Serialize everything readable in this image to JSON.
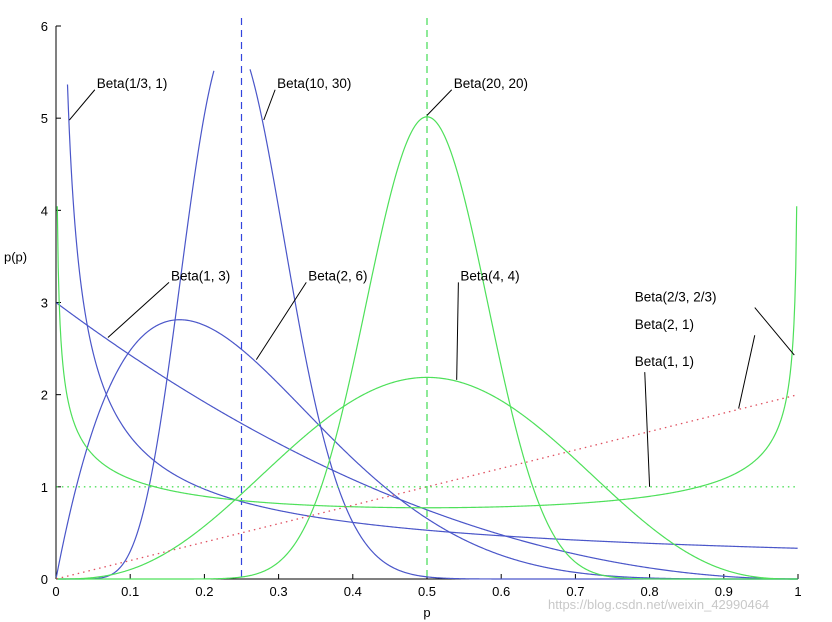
{
  "chart_data": {
    "type": "line",
    "xlabel": "p",
    "ylabel": "p(p)",
    "xlim": [
      0,
      1
    ],
    "ylim": [
      0,
      6
    ],
    "xticks": [
      "0",
      "0.1",
      "0.2",
      "0.3",
      "0.4",
      "0.5",
      "0.6",
      "0.7",
      "0.8",
      "0.9",
      "1"
    ],
    "yticks": [
      "0",
      "1",
      "2",
      "3",
      "4",
      "5",
      "6"
    ],
    "grid": false,
    "series": [
      {
        "name": "Beta(1/3, 1)",
        "a": 0.3333333,
        "b": 1,
        "color": "#4a56c9",
        "style": "solid"
      },
      {
        "name": "Beta(1, 3)",
        "a": 1,
        "b": 3,
        "color": "#4a56c9",
        "style": "solid"
      },
      {
        "name": "Beta(2, 6)",
        "a": 2,
        "b": 6,
        "color": "#4a56c9",
        "style": "solid"
      },
      {
        "name": "Beta(10, 30)",
        "a": 10,
        "b": 30,
        "color": "#4a56c9",
        "style": "solid"
      },
      {
        "name": "Beta(20, 20)",
        "a": 20,
        "b": 20,
        "color": "#4ee05a",
        "style": "solid"
      },
      {
        "name": "Beta(4, 4)",
        "a": 4,
        "b": 4,
        "color": "#4ee05a",
        "style": "solid"
      },
      {
        "name": "Beta(2/3, 2/3)",
        "a": 0.6666667,
        "b": 0.6666667,
        "color": "#4ee05a",
        "style": "solid"
      },
      {
        "name": "Beta(2, 1)",
        "a": 2,
        "b": 1,
        "color": "#e05060",
        "style": "dotted"
      },
      {
        "name": "Beta(1, 1)",
        "a": 1,
        "b": 1,
        "color": "#4ee05a",
        "style": "dotted"
      }
    ],
    "vlines": [
      {
        "x": 0.25,
        "color": "#3344dd"
      },
      {
        "x": 0.5,
        "color": "#44dd55"
      }
    ],
    "annotations": [
      {
        "text": "Beta(1/3, 1)",
        "x": 0.055,
        "y": 5.33,
        "point_x": 0.018,
        "point_y": 4.98
      },
      {
        "text": "Beta(10, 30)",
        "x": 0.298,
        "y": 5.33,
        "point_x": 0.28,
        "point_y": 4.98
      },
      {
        "text": "Beta(20, 20)",
        "x": 0.536,
        "y": 5.33,
        "point_x": 0.5,
        "point_y": 5.03
      },
      {
        "text": "Beta(1, 3)",
        "x": 0.155,
        "y": 3.24,
        "point_x": 0.07,
        "point_y": 2.62
      },
      {
        "text": "Beta(2, 6)",
        "x": 0.34,
        "y": 3.24,
        "point_x": 0.27,
        "point_y": 2.38
      },
      {
        "text": "Beta(4, 4)",
        "x": 0.545,
        "y": 3.24,
        "point_x": 0.54,
        "point_y": 2.16
      },
      {
        "text": "Beta(2/3, 2/3)",
        "x": 0.78,
        "y": 3.01,
        "point_x": 0.995,
        "point_y": 2.43
      },
      {
        "text": "Beta(2, 1)",
        "x": 0.78,
        "y": 2.71,
        "point_x": 0.92,
        "point_y": 1.85
      },
      {
        "text": "Beta(1, 1)",
        "x": 0.78,
        "y": 2.31,
        "point_x": 0.8,
        "point_y": 1.0
      }
    ]
  },
  "watermark": "https://blog.csdn.net/weixin_42990464"
}
